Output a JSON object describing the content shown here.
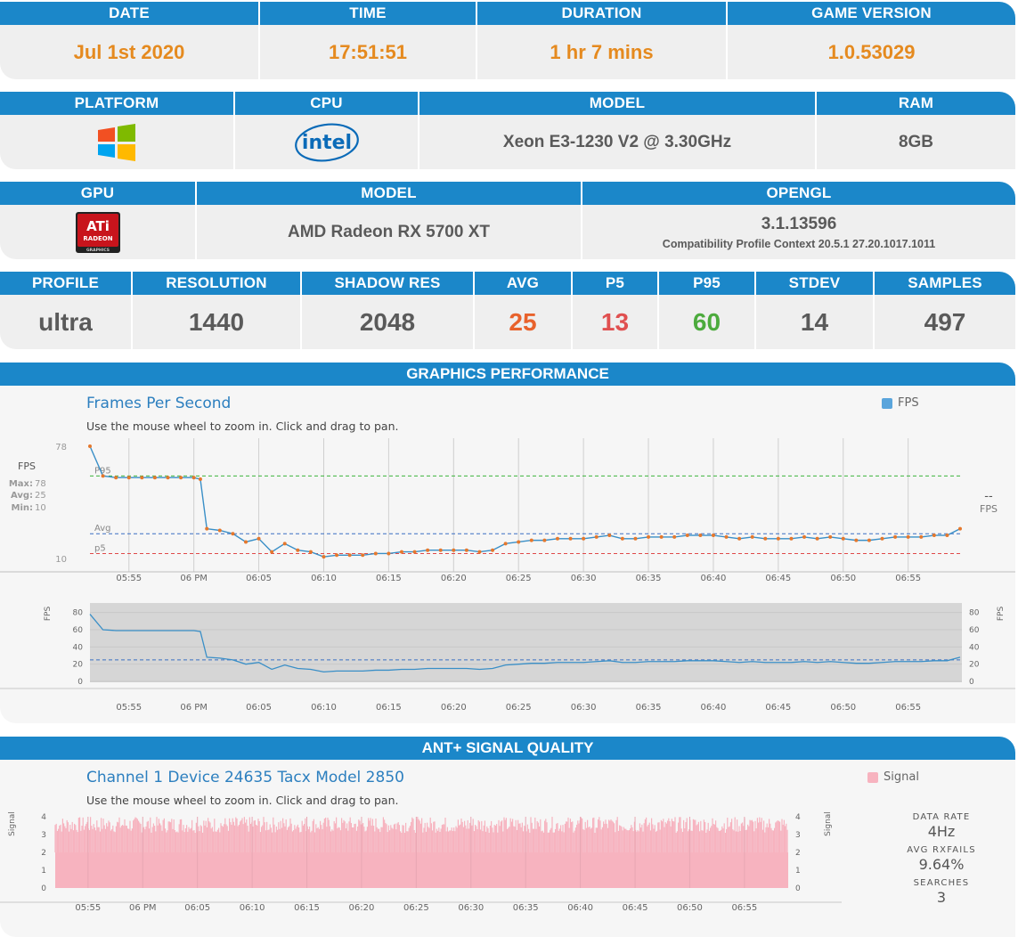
{
  "session": {
    "headers": [
      "DATE",
      "TIME",
      "DURATION",
      "GAME VERSION"
    ],
    "values": [
      "Jul 1st 2020",
      "17:51:51",
      "1 hr 7 mins",
      "1.0.53029"
    ]
  },
  "system": {
    "headers": [
      "PLATFORM",
      "CPU",
      "MODEL",
      "RAM"
    ],
    "platform_icon": "windows-logo",
    "cpu_icon": "intel-logo",
    "cpu_logo_text": "intel",
    "cpu_model": "Xeon E3-1230 V2 @ 3.30GHz",
    "ram": "8GB"
  },
  "gpu": {
    "headers": [
      "GPU",
      "MODEL",
      "OPENGL"
    ],
    "gpu_icon": "ati-radeon-logo",
    "gpu_logo_text": [
      "ATi",
      "RADEON",
      "GRAPHICS"
    ],
    "model": "AMD Radeon RX 5700 XT",
    "opengl_version": "3.1.13596",
    "opengl_detail": "Compatibility Profile Context 20.5.1 27.20.1017.1011"
  },
  "profile": {
    "headers": [
      "PROFILE",
      "RESOLUTION",
      "SHADOW RES",
      "AVG",
      "P5",
      "P95",
      "STDEV",
      "SAMPLES"
    ],
    "values": [
      "ultra",
      "1440",
      "2048",
      "25",
      "13",
      "60",
      "14",
      "497"
    ]
  },
  "graphics": {
    "section_title": "GRAPHICS PERFORMANCE",
    "chart_title": "Frames Per Second",
    "hint": "Use the mouse wheel to zoom in. Click and drag to pan.",
    "legend": "FPS",
    "axis_label": "FPS",
    "max_label": "Max:",
    "max_value": "78",
    "avg_label": "Avg:",
    "avg_value": "25",
    "min_label": "Min:",
    "min_value": "10",
    "y_top": "78",
    "y_bottom": "10",
    "line_labels": [
      "P95",
      "Avg",
      "p5"
    ],
    "right_readout": "--",
    "right_unit": "FPS"
  },
  "ant": {
    "section_title": "ANT+ SIGNAL QUALITY",
    "chart_title": "Channel 1 Device 24635 Tacx Model 2850",
    "hint": "Use the mouse wheel to zoom in. Click and drag to pan.",
    "legend": "Signal",
    "axis_label": "Signal",
    "stats": [
      {
        "label": "DATA RATE",
        "value": "4Hz"
      },
      {
        "label": "AVG RXFAILS",
        "value": "9.64%"
      },
      {
        "label": "SEARCHES",
        "value": "3"
      }
    ]
  },
  "colors": {
    "header_blue": "#1b87c9",
    "fps_line": "#3a8fc7",
    "fps_point": "#e5782d",
    "p95_line": "#3cb43c",
    "avg_line": "#3a6fc4",
    "p5_line": "#e04a4a",
    "signal": "#f7b3bf"
  },
  "chart_data": [
    {
      "type": "line",
      "title": "Frames Per Second",
      "series": [
        {
          "name": "FPS",
          "x": [
            "05:52",
            "05:53",
            "05:54",
            "05:55",
            "05:56",
            "05:57",
            "05:58",
            "05:59",
            "06:00",
            "06:00.5",
            "06:01",
            "06:02",
            "06:03",
            "06:04",
            "06:05",
            "06:06",
            "06:07",
            "06:08",
            "06:09",
            "06:10",
            "06:11",
            "06:12",
            "06:13",
            "06:14",
            "06:15",
            "06:16",
            "06:17",
            "06:18",
            "06:19",
            "06:20",
            "06:21",
            "06:22",
            "06:23",
            "06:24",
            "06:25",
            "06:26",
            "06:27",
            "06:28",
            "06:29",
            "06:30",
            "06:31",
            "06:32",
            "06:33",
            "06:34",
            "06:35",
            "06:36",
            "06:37",
            "06:38",
            "06:39",
            "06:40",
            "06:41",
            "06:42",
            "06:43",
            "06:44",
            "06:45",
            "06:46",
            "06:47",
            "06:48",
            "06:49",
            "06:50",
            "06:51",
            "06:52",
            "06:53",
            "06:54",
            "06:55",
            "06:56",
            "06:57",
            "06:58",
            "06:59"
          ],
          "values": [
            78,
            60,
            59,
            59,
            59,
            59,
            59,
            59,
            59,
            58,
            28,
            27,
            25,
            20,
            22,
            14,
            19,
            15,
            14,
            11,
            12,
            12,
            12,
            13,
            13,
            14,
            14,
            15,
            15,
            15,
            15,
            14,
            15,
            19,
            20,
            21,
            21,
            22,
            22,
            22,
            23,
            24,
            22,
            22,
            23,
            23,
            23,
            24,
            24,
            24,
            23,
            22,
            23,
            22,
            22,
            22,
            23,
            22,
            23,
            22,
            21,
            21,
            22,
            23,
            23,
            23,
            24,
            24,
            28
          ]
        }
      ],
      "reference_lines": [
        {
          "name": "P95",
          "value": 60
        },
        {
          "name": "Avg",
          "value": 25
        },
        {
          "name": "p5",
          "value": 13
        }
      ],
      "x_ticks": [
        "05:55",
        "06 PM",
        "06:05",
        "06:10",
        "06:15",
        "06:20",
        "06:25",
        "06:30",
        "06:35",
        "06:40",
        "06:45",
        "06:50",
        "06:55"
      ],
      "ylim": [
        10,
        78
      ],
      "ylabel": "FPS"
    },
    {
      "type": "line",
      "title": "",
      "series": [
        {
          "name": "FPS",
          "x": [
            "05:52",
            "05:53",
            "05:54",
            "05:55",
            "05:56",
            "05:57",
            "05:58",
            "05:59",
            "06:00",
            "06:00.5",
            "06:01",
            "06:02",
            "06:03",
            "06:04",
            "06:05",
            "06:06",
            "06:07",
            "06:08",
            "06:09",
            "06:10",
            "06:11",
            "06:12",
            "06:13",
            "06:14",
            "06:15",
            "06:16",
            "06:17",
            "06:18",
            "06:19",
            "06:20",
            "06:21",
            "06:22",
            "06:23",
            "06:24",
            "06:25",
            "06:26",
            "06:27",
            "06:28",
            "06:29",
            "06:30",
            "06:31",
            "06:32",
            "06:33",
            "06:34",
            "06:35",
            "06:36",
            "06:37",
            "06:38",
            "06:39",
            "06:40",
            "06:41",
            "06:42",
            "06:43",
            "06:44",
            "06:45",
            "06:46",
            "06:47",
            "06:48",
            "06:49",
            "06:50",
            "06:51",
            "06:52",
            "06:53",
            "06:54",
            "06:55",
            "06:56",
            "06:57",
            "06:58",
            "06:59"
          ],
          "values": [
            78,
            60,
            59,
            59,
            59,
            59,
            59,
            59,
            59,
            58,
            28,
            27,
            25,
            20,
            22,
            14,
            19,
            15,
            14,
            11,
            12,
            12,
            12,
            13,
            13,
            14,
            14,
            15,
            15,
            15,
            15,
            14,
            15,
            19,
            20,
            21,
            21,
            22,
            22,
            22,
            23,
            24,
            22,
            22,
            23,
            23,
            23,
            24,
            24,
            24,
            23,
            22,
            23,
            22,
            22,
            22,
            23,
            22,
            23,
            22,
            21,
            21,
            22,
            23,
            23,
            23,
            24,
            24,
            28
          ]
        }
      ],
      "y_ticks": [
        0,
        20,
        40,
        60,
        80
      ],
      "x_ticks": [
        "05:55",
        "06 PM",
        "06:05",
        "06:10",
        "06:15",
        "06:20",
        "06:25",
        "06:30",
        "06:35",
        "06:40",
        "06:45",
        "06:50",
        "06:55"
      ],
      "ylim": [
        0,
        90
      ],
      "ylabel": "FPS"
    },
    {
      "type": "bar",
      "title": "Channel 1 Device 24635 Tacx Model 2850",
      "series": [
        {
          "name": "Signal",
          "range": [
            2,
            4
          ]
        }
      ],
      "y_ticks": [
        0,
        1,
        2,
        3,
        4
      ],
      "ylim": [
        0,
        4
      ],
      "x_ticks": [
        "05:55",
        "06 PM",
        "06:05",
        "06:10",
        "06:15",
        "06:20",
        "06:25",
        "06:30",
        "06:35",
        "06:40",
        "06:45",
        "06:50",
        "06:55"
      ],
      "ylabel": "Signal"
    }
  ]
}
